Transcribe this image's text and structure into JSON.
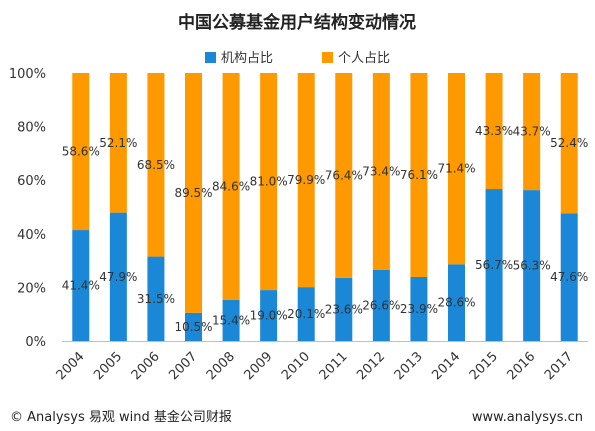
{
  "chart_data": {
    "type": "bar",
    "stacked": true,
    "title": "中国公募基金用户结构变动情况",
    "categories": [
      "2004",
      "2005",
      "2006",
      "2007",
      "2008",
      "2009",
      "2010",
      "2011",
      "2012",
      "2013",
      "2014",
      "2015",
      "2016",
      "2017"
    ],
    "series": [
      {
        "name": "机构占比",
        "color": "#1a87d7",
        "values": [
          41.4,
          47.9,
          31.5,
          10.5,
          15.4,
          19.0,
          20.1,
          23.6,
          26.6,
          23.9,
          28.6,
          56.7,
          56.3,
          47.6
        ],
        "labels": [
          "41.4%",
          "47.9%",
          "31.5%",
          "10.5%",
          "15.4%",
          "19.0%",
          "20.1%",
          "23.6%",
          "26.6%",
          "23.9%",
          "28.6%",
          "56.7%",
          "56.3%",
          "47.6%"
        ]
      },
      {
        "name": "个人占比",
        "color": "#ff9900",
        "values": [
          58.6,
          52.1,
          68.5,
          89.5,
          84.6,
          81.0,
          79.9,
          76.4,
          73.4,
          76.1,
          71.4,
          43.3,
          43.7,
          52.4
        ],
        "labels": [
          "58.6%",
          "52.1%",
          "68.5%",
          "89.5%",
          "84.6%",
          "81.0%",
          "79.9%",
          "76.4%",
          "73.4%",
          "76.1%",
          "71.4%",
          "43.3%",
          "43.7%",
          "52.4%"
        ]
      }
    ],
    "yticks": [
      "0%",
      "20%",
      "40%",
      "60%",
      "80%",
      "100%"
    ],
    "ylim": [
      0,
      100
    ],
    "legend": "top-center"
  },
  "footer": {
    "left": "© Analysys 易观 wind 基金公司财报",
    "right": "www.analysys.cn"
  }
}
